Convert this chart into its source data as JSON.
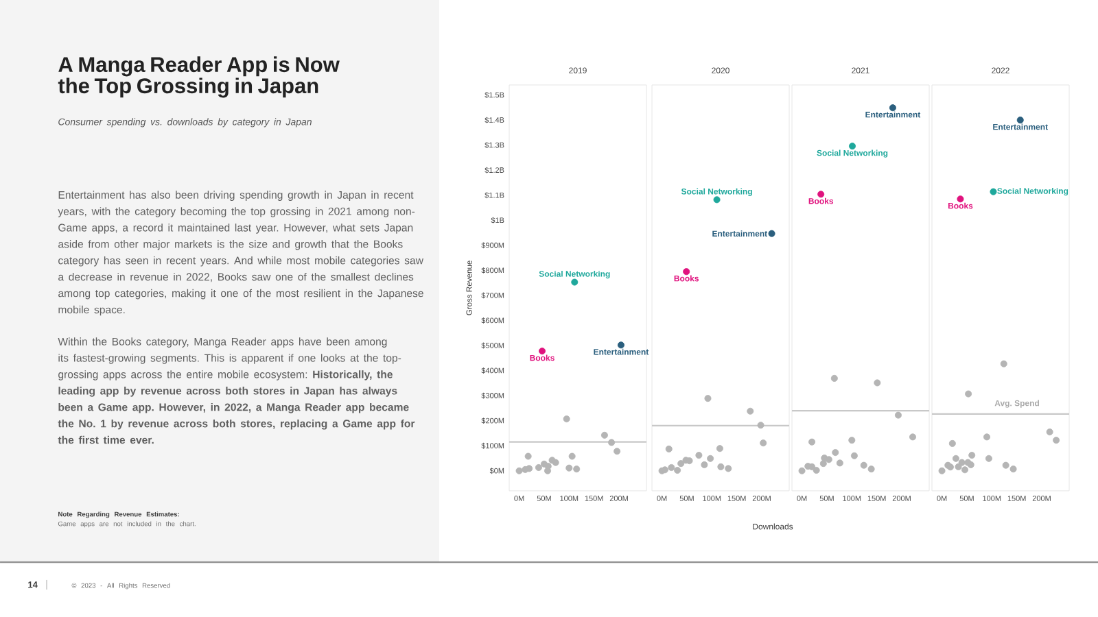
{
  "chart_data": [
    {
      "type": "scatter",
      "title": "2019",
      "ylabel": "Gross Revenue",
      "marker": "circle",
      "annotations": [
        "A Manga Reader App is Now the Top Grossing in Japan",
        "Consumer spending vs. downloads by category in Japan",
        "Entertainment has also been driving spending growth in Japan in recent years, with the category becoming the top grossing in 2021 among non-Game apps, a record it maintained last year. However, what sets Japan aside from other major markets is the size and growth that the Books category has seen in recent years. And while most mobile categories saw a decrease in revenue in 2022, Books saw one of the smallest declines among top categories, making it one of the most resilient in the Japanese mobile space.",
        "Within the Books category, Manga Reader apps have been among its fastest-growing segments. This is apparent if one looks at the top-grossing apps across the entire mobile ecosystem: **Historically, the leading app by revenue across both stores in Japan has always been a Game app. However, in 2022, a Manga Reader app became the No. 1 by revenue across both stores, replacing a Game app for the first time ever.**",
        "Note Regarding Revenue Estimates:",
        "Game apps are not included in the chart.",
        "14",
        "© 2023 - All Rights Reserved"
      ],
      "xlim": [
        -20000000,
        255000000
      ],
      "ylim": [
        -80000000,
        1540000000
      ],
      "xticks": [
        {
          "value": 0,
          "label": "0M"
        },
        {
          "value": 50000000,
          "label": "50M"
        },
        {
          "value": 100000000,
          "label": "100M"
        },
        {
          "value": 150000000,
          "label": "150M"
        },
        {
          "value": 200000000,
          "label": "200M"
        }
      ],
      "yticks": [
        {
          "value": 0,
          "label": "$0M"
        },
        {
          "value": 100000000,
          "label": "$100M"
        },
        {
          "value": 200000000,
          "label": "$200M"
        },
        {
          "value": 300000000,
          "label": "$300M"
        },
        {
          "value": 400000000,
          "label": "$400M"
        },
        {
          "value": 500000000,
          "label": "$500M"
        },
        {
          "value": 600000000,
          "label": "$600M"
        },
        {
          "value": 700000000,
          "label": "$700M"
        },
        {
          "value": 800000000,
          "label": "$800M"
        },
        {
          "value": 900000000,
          "label": "$900M"
        },
        {
          "value": 1000000000,
          "label": "$1B"
        },
        {
          "value": 1100000000,
          "label": "$1.1B"
        },
        {
          "value": 1200000000,
          "label": "$1.2B"
        },
        {
          "value": 1300000000,
          "label": "$1.3B"
        },
        {
          "value": 1400000000,
          "label": "$1.4B"
        },
        {
          "value": 1500000000,
          "label": "$1.5B"
        }
      ],
      "ref_lines": [
        {
          "axis": "y",
          "value": 115000000,
          "color": "#c8c8c8"
        }
      ],
      "series": [
        {
          "color": "#b5b5b5",
          "x": [
            0,
            12000000,
            18000000,
            20000000,
            39000000,
            50000000,
            57000000,
            58000000,
            66000000,
            73000000,
            95000000,
            100000000,
            106000000,
            115000000,
            171000000,
            185000000,
            196000000
          ],
          "values": [
            0,
            5000000,
            58000000,
            9000000,
            13000000,
            27000000,
            0,
            18000000,
            42000000,
            33000000,
            207000000,
            11000000,
            58000000,
            7000000,
            142000000,
            113000000,
            78000000
          ]
        },
        {
          "name": "Books",
          "color": "#e0137e",
          "x": [
            46000000
          ],
          "values": [
            478000000
          ]
        },
        {
          "name": "Social Networking",
          "color": "#1fa89c",
          "x": [
            111000000
          ],
          "values": [
            753000000
          ]
        },
        {
          "name": "Entertainment",
          "color": "#2b5f7e",
          "x": [
            204000000
          ],
          "values": [
            502000000
          ]
        }
      ]
    },
    {
      "type": "scatter",
      "title": "2020",
      "xlabel": "Downloads",
      "marker": "circle",
      "tick_labels": "x",
      "xlim": [
        -20000000,
        255000000
      ],
      "ylim": [
        -80000000,
        1540000000
      ],
      "xticks": [
        {
          "value": 0,
          "label": "0M"
        },
        {
          "value": 50000000,
          "label": "50M"
        },
        {
          "value": 100000000,
          "label": "100M"
        },
        {
          "value": 150000000,
          "label": "150M"
        },
        {
          "value": 200000000,
          "label": "200M"
        }
      ],
      "ref_lines": [
        {
          "axis": "y",
          "value": 180000000,
          "color": "#c8c8c8"
        }
      ],
      "series": [
        {
          "color": "#b5b5b5",
          "x": [
            0,
            6000000,
            14000000,
            19000000,
            31000000,
            38000000,
            48000000,
            55000000,
            74000000,
            85000000,
            92000000,
            97000000,
            116000000,
            118000000,
            133000000,
            177000000,
            198000000,
            203000000
          ],
          "values": [
            0,
            4000000,
            87000000,
            13000000,
            2000000,
            29000000,
            42000000,
            40000000,
            62000000,
            24000000,
            289000000,
            49000000,
            89000000,
            16000000,
            9000000,
            238000000,
            182000000,
            111000000
          ]
        },
        {
          "name": "Books",
          "color": "#e0137e",
          "x": [
            49000000
          ],
          "values": [
            795000000
          ]
        },
        {
          "name": "Social Networking",
          "color": "#1fa89c",
          "x": [
            110000000
          ],
          "values": [
            1082000000
          ]
        },
        {
          "name": "Entertainment",
          "color": "#2b5f7e",
          "x": [
            220000000
          ],
          "values": [
            947000000
          ]
        }
      ]
    },
    {
      "type": "scatter",
      "title": "2021",
      "marker": "circle",
      "tick_labels": "x",
      "xlim": [
        -20000000,
        255000000
      ],
      "ylim": [
        -80000000,
        1540000000
      ],
      "xticks": [
        {
          "value": 0,
          "label": "0M"
        },
        {
          "value": 50000000,
          "label": "50M"
        },
        {
          "value": 100000000,
          "label": "100M"
        },
        {
          "value": 150000000,
          "label": "150M"
        },
        {
          "value": 200000000,
          "label": "200M"
        }
      ],
      "ref_lines": [
        {
          "axis": "y",
          "value": 240000000,
          "color": "#c8c8c8"
        }
      ],
      "series": [
        {
          "color": "#b5b5b5",
          "x": [
            0,
            12000000,
            20000000,
            20000000,
            29000000,
            43000000,
            45000000,
            54000000,
            65000000,
            67000000,
            76000000,
            100000000,
            105000000,
            124000000,
            139000000,
            151000000,
            193000000,
            222000000
          ],
          "values": [
            0,
            18000000,
            115000000,
            16000000,
            2000000,
            29000000,
            51000000,
            45000000,
            369000000,
            73000000,
            31000000,
            122000000,
            60000000,
            22000000,
            7000000,
            351000000,
            222000000,
            135000000
          ]
        },
        {
          "name": "Books",
          "color": "#e0137e",
          "x": [
            38000000
          ],
          "values": [
            1104000000
          ]
        },
        {
          "name": "Social Networking",
          "color": "#1fa89c",
          "x": [
            101000000
          ],
          "values": [
            1296000000
          ]
        },
        {
          "name": "Entertainment",
          "color": "#2b5f7e",
          "x": [
            182000000
          ],
          "values": [
            1449000000
          ]
        }
      ]
    },
    {
      "type": "scatter",
      "title": "2022",
      "marker": "circle",
      "tick_labels": "x",
      "xlim": [
        -20000000,
        255000000
      ],
      "ylim": [
        -80000000,
        1540000000
      ],
      "xticks": [
        {
          "value": 0,
          "label": "0M"
        },
        {
          "value": 50000000,
          "label": "50M"
        },
        {
          "value": 100000000,
          "label": "100M"
        },
        {
          "value": 150000000,
          "label": "150M"
        },
        {
          "value": 200000000,
          "label": "200M"
        }
      ],
      "ref_lines": [
        {
          "axis": "y",
          "value": 227000000,
          "label": "Avg. Spend",
          "color": "#c8c8c8"
        }
      ],
      "series": [
        {
          "color": "#b5b5b5",
          "x": [
            0,
            12000000,
            17000000,
            21000000,
            28000000,
            33000000,
            40000000,
            46000000,
            52000000,
            53000000,
            58000000,
            60000000,
            90000000,
            94000000,
            124000000,
            128000000,
            143000000,
            216000000,
            229000000
          ],
          "values": [
            0,
            22000000,
            15000000,
            109000000,
            49000000,
            16000000,
            33000000,
            4000000,
            33000000,
            307000000,
            24000000,
            62000000,
            135000000,
            49000000,
            427000000,
            22000000,
            7000000,
            155000000,
            122000000
          ]
        },
        {
          "name": "Books",
          "color": "#e0137e",
          "x": [
            37000000
          ],
          "values": [
            1085000000
          ]
        },
        {
          "name": "Social Networking",
          "color": "#1fa89c",
          "x": [
            103000000
          ],
          "values": [
            1114000000
          ]
        },
        {
          "name": "Entertainment",
          "color": "#2b5f7e",
          "x": [
            157000000
          ],
          "values": [
            1400000000
          ]
        }
      ]
    }
  ]
}
